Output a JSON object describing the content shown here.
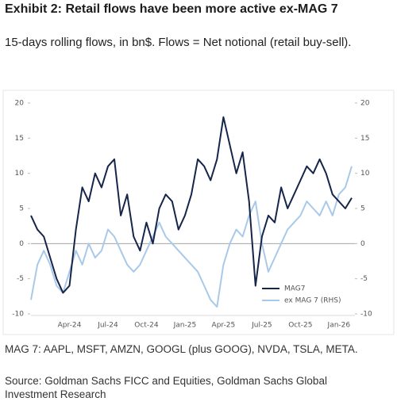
{
  "chart_data": {
    "type": "line",
    "title": "Exhibit 2: Retail flows have been more active ex-MAG 7",
    "subtitle": "15-days rolling flows, in bn$. Flows = Net notional (retail buy-sell).",
    "notes": "MAG 7: AAPL, MSFT, AMZN, GOOGL (plus GOOG), NVDA, TSLA, META.",
    "source": "Source: Goldman Sachs FICC and Equities, Goldman Sachs Global Investment Research",
    "categories": [
      null,
      null,
      null,
      null,
      null,
      null,
      "Apr-24",
      null,
      null,
      null,
      null,
      null,
      "Jul-24",
      null,
      null,
      null,
      null,
      null,
      "Oct-24",
      null,
      null,
      null,
      null,
      null,
      "Jan-25",
      null,
      null,
      null,
      null,
      null,
      "Apr-25",
      null,
      null,
      null,
      null,
      null,
      "Jul-25",
      null,
      null,
      null,
      null,
      null,
      "Oct-25",
      null,
      null,
      null,
      null,
      null,
      "Jan-26",
      null,
      null
    ],
    "series": [
      {
        "name": "MAG7",
        "color": "#16254a",
        "values": [
          4,
          2,
          1,
          -2,
          -5,
          -7,
          -6,
          2,
          8,
          6,
          10,
          8,
          11,
          12,
          4,
          7,
          1,
          -1,
          3,
          0,
          5,
          7,
          6,
          2,
          4,
          7,
          12,
          11,
          9,
          12,
          18,
          14,
          10,
          13,
          6,
          -6,
          1,
          4,
          3,
          8,
          5,
          7,
          9,
          11,
          10,
          12,
          10,
          7,
          6,
          5,
          6.5
        ]
      },
      {
        "name": "ex MAG 7 (RHS)",
        "color": "#a9c9e9",
        "axis": "y2",
        "values": [
          -8,
          -3,
          -1,
          -3,
          -6,
          -7,
          -4,
          -1,
          -3,
          0,
          -2,
          -1,
          2,
          1,
          -1,
          -3,
          -4,
          -3,
          -1,
          1,
          3,
          1,
          0,
          -1,
          -2,
          -3,
          -4,
          -6,
          -8,
          -9,
          -3,
          0,
          2,
          1,
          4,
          6,
          0,
          -4,
          -2,
          0,
          2,
          3,
          4,
          6,
          5,
          4,
          6,
          4,
          7,
          8,
          11
        ]
      }
    ],
    "ylim": [
      -10,
      20
    ],
    "yticks": [
      -10,
      -5,
      0,
      5,
      10,
      15,
      20
    ],
    "y2lim": [
      -10,
      20
    ],
    "y2ticks": [
      -10,
      -5,
      0,
      5,
      10,
      15,
      20
    ],
    "legend": "lower right"
  }
}
